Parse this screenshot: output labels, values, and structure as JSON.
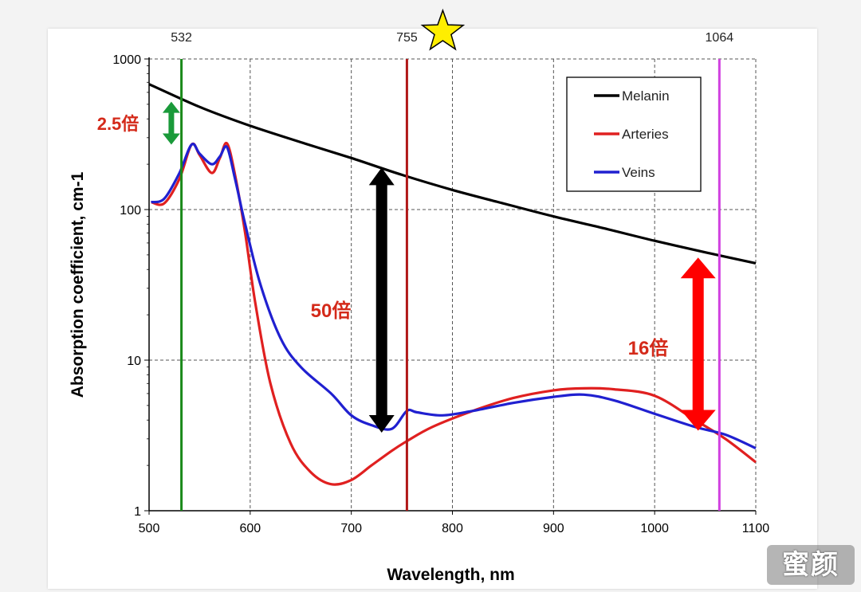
{
  "chart_data": {
    "type": "line",
    "xlabel": "Wavelength, nm",
    "ylabel": "Absorption coefficient, cm-1",
    "xlim": [
      500,
      1100
    ],
    "ylim": [
      1,
      1000
    ],
    "yscale": "log",
    "grid": true,
    "legend_position": "top-right",
    "x_ticks": [
      "500",
      "600",
      "700",
      "800",
      "900",
      "1000",
      "1100"
    ],
    "y_ticks": [
      "1",
      "10",
      "100",
      "1000"
    ],
    "series": [
      {
        "name": "Melanin",
        "color": "#000000",
        "x": [
          500,
          550,
          600,
          650,
          700,
          750,
          800,
          850,
          900,
          950,
          1000,
          1050,
          1100
        ],
        "y": [
          680,
          480,
          360,
          280,
          220,
          170,
          135,
          110,
          90,
          75,
          62,
          52,
          44
        ]
      },
      {
        "name": "Arteries",
        "color": "#e02020",
        "x": [
          502,
          515,
          530,
          542,
          550,
          562,
          570,
          577,
          585,
          595,
          605,
          620,
          640,
          660,
          680,
          700,
          720,
          740,
          755,
          780,
          820,
          860,
          900,
          930,
          960,
          1000,
          1040,
          1070,
          1100
        ],
        "y": [
          112,
          110,
          160,
          270,
          230,
          175,
          220,
          275,
          170,
          70,
          24,
          7,
          2.8,
          1.8,
          1.5,
          1.6,
          2.0,
          2.5,
          2.9,
          3.6,
          4.6,
          5.6,
          6.3,
          6.5,
          6.4,
          5.8,
          4.0,
          3.0,
          2.1
        ]
      },
      {
        "name": "Veins",
        "color": "#2020d0",
        "x": [
          502,
          515,
          530,
          542,
          550,
          562,
          570,
          577,
          585,
          595,
          610,
          630,
          650,
          680,
          700,
          720,
          740,
          755,
          765,
          790,
          820,
          860,
          900,
          930,
          960,
          1000,
          1040,
          1070,
          1100
        ],
        "y": [
          112,
          118,
          175,
          270,
          235,
          200,
          225,
          260,
          160,
          80,
          32,
          14,
          9.0,
          6.0,
          4.3,
          3.7,
          3.5,
          4.6,
          4.5,
          4.3,
          4.6,
          5.2,
          5.7,
          5.9,
          5.4,
          4.4,
          3.6,
          3.2,
          2.6
        ]
      }
    ],
    "vertical_lines": [
      {
        "x": 532,
        "label": "532",
        "color": "#1a8a1a"
      },
      {
        "x": 755,
        "label": "755",
        "color": "#b01818"
      },
      {
        "x": 1064,
        "label": "1064",
        "color": "#d040e0"
      }
    ],
    "annotations": [
      {
        "text": "2.5倍",
        "color": "#d42a1a",
        "arrow_color": "#1a9a3a",
        "x": 532,
        "y_from": 520,
        "y_to": 270
      },
      {
        "text": "50倍",
        "color": "#d42a1a",
        "arrow_color": "#000000",
        "x": 730,
        "y_from": 190,
        "y_to": 3.3
      },
      {
        "text": "16倍",
        "color": "#d42a1a",
        "arrow_color": "#ff0000",
        "x": 1043,
        "y_from": 48,
        "y_to": 3.4
      }
    ],
    "marker": {
      "symbol": "star",
      "color": "#ffee00",
      "near": "755"
    }
  },
  "watermark": "蜜颜"
}
